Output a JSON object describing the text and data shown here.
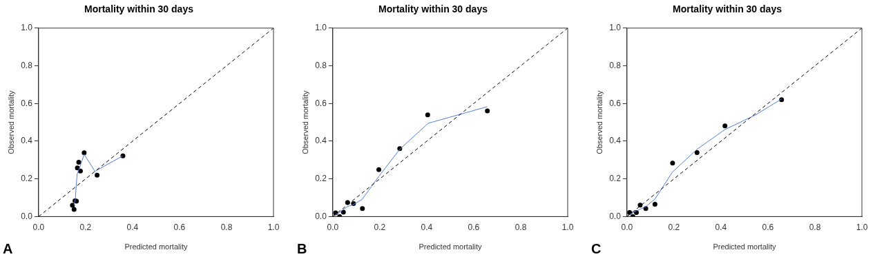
{
  "chart_data": [
    {
      "type": "scatter",
      "title": "Mortality within 30 days",
      "xlabel": "Predicted mortality",
      "ylabel": "Observed mortality",
      "annotations": [
        "A"
      ],
      "grid": false,
      "legend": false,
      "xlim": [
        0,
        1
      ],
      "ylim": [
        0,
        1
      ],
      "xticks": [
        {
          "value": 0,
          "label": "0.0"
        },
        {
          "value": 0.2,
          "label": "0.2"
        },
        {
          "value": 0.4,
          "label": "0.4"
        },
        {
          "value": 0.6,
          "label": "0.6"
        },
        {
          "value": 0.8,
          "label": "0.8"
        },
        {
          "value": 1,
          "label": "1.0"
        }
      ],
      "yticks": [
        {
          "value": 0,
          "label": "0.0"
        },
        {
          "value": 0.2,
          "label": "0.2"
        },
        {
          "value": 0.4,
          "label": "0.4"
        },
        {
          "value": 0.6,
          "label": "0.6"
        },
        {
          "value": 0.8,
          "label": "0.8"
        },
        {
          "value": 1,
          "label": "1.0"
        }
      ],
      "series": [
        {
          "type": "line",
          "color": "#000000",
          "line_style": "dashed",
          "marker": "none",
          "x": [
            0,
            1
          ],
          "values": [
            0,
            1
          ]
        },
        {
          "type": "line",
          "color": "#4f7fd9",
          "line_style": "solid",
          "marker": "none",
          "x": [
            0.15,
            0.156,
            0.164,
            0.172,
            0.194,
            0.24,
            0.358
          ],
          "values": [
            0.06,
            0.088,
            0.225,
            0.25,
            0.33,
            0.24,
            0.322
          ]
        },
        {
          "type": "scatter",
          "color": "#000000",
          "marker": "circle",
          "x": [
            0.144,
            0.151,
            0.155,
            0.161,
            0.165,
            0.171,
            0.178,
            0.194,
            0.249,
            0.359
          ],
          "values": [
            0.06,
            0.038,
            0.084,
            0.082,
            0.258,
            0.288,
            0.242,
            0.339,
            0.22,
            0.322
          ]
        }
      ]
    },
    {
      "type": "scatter",
      "title": "Mortality within 30 days",
      "xlabel": "Predicted mortality",
      "ylabel": "Observed mortality",
      "annotations": [
        "B"
      ],
      "grid": false,
      "legend": false,
      "xlim": [
        0,
        1
      ],
      "ylim": [
        0,
        1
      ],
      "xticks": [
        {
          "value": 0,
          "label": "0.0"
        },
        {
          "value": 0.2,
          "label": "0.2"
        },
        {
          "value": 0.4,
          "label": "0.4"
        },
        {
          "value": 0.6,
          "label": "0.6"
        },
        {
          "value": 0.8,
          "label": "0.8"
        },
        {
          "value": 1,
          "label": "1.0"
        }
      ],
      "yticks": [
        {
          "value": 0,
          "label": "0.0"
        },
        {
          "value": 0.2,
          "label": "0.2"
        },
        {
          "value": 0.4,
          "label": "0.4"
        },
        {
          "value": 0.6,
          "label": "0.6"
        },
        {
          "value": 0.8,
          "label": "0.8"
        },
        {
          "value": 1,
          "label": "1.0"
        }
      ],
      "series": [
        {
          "type": "line",
          "color": "#000000",
          "line_style": "dashed",
          "marker": "none",
          "x": [
            0,
            1
          ],
          "values": [
            0,
            1
          ]
        },
        {
          "type": "line",
          "color": "#4f7fd9",
          "line_style": "solid",
          "marker": "none",
          "x": [
            0,
            0.027,
            0.062,
            0.086,
            0.124,
            0.196,
            0.285,
            0.406,
            0.658
          ],
          "values": [
            0.002,
            0.02,
            0.053,
            0.063,
            0.09,
            0.213,
            0.357,
            0.495,
            0.583
          ]
        },
        {
          "type": "scatter",
          "color": "#000000",
          "marker": "circle",
          "x": [
            0.012,
            0.029,
            0.045,
            0.063,
            0.088,
            0.126,
            0.196,
            0.285,
            0.404,
            0.658
          ],
          "values": [
            0.02,
            0.0,
            0.023,
            0.075,
            0.069,
            0.043,
            0.249,
            0.361,
            0.54,
            0.561
          ]
        }
      ]
    },
    {
      "type": "scatter",
      "title": "Mortality within 30 days",
      "xlabel": "Predicted mortality",
      "ylabel": "Observed mortality",
      "annotations": [
        "C"
      ],
      "grid": false,
      "legend": false,
      "xlim": [
        0,
        1
      ],
      "ylim": [
        0,
        1
      ],
      "xticks": [
        {
          "value": 0,
          "label": "0.0"
        },
        {
          "value": 0.2,
          "label": "0.2"
        },
        {
          "value": 0.4,
          "label": "0.4"
        },
        {
          "value": 0.6,
          "label": "0.6"
        },
        {
          "value": 0.8,
          "label": "0.8"
        },
        {
          "value": 1,
          "label": "1.0"
        }
      ],
      "yticks": [
        {
          "value": 0,
          "label": "0.0"
        },
        {
          "value": 0.2,
          "label": "0.2"
        },
        {
          "value": 0.4,
          "label": "0.4"
        },
        {
          "value": 0.6,
          "label": "0.6"
        },
        {
          "value": 0.8,
          "label": "0.8"
        },
        {
          "value": 1,
          "label": "1.0"
        }
      ],
      "series": [
        {
          "type": "line",
          "color": "#000000",
          "line_style": "dashed",
          "marker": "none",
          "x": [
            0,
            1
          ],
          "values": [
            0,
            1
          ]
        },
        {
          "type": "line",
          "color": "#4f7fd9",
          "line_style": "solid",
          "marker": "none",
          "x": [
            0,
            0.04,
            0.08,
            0.119,
            0.194,
            0.298,
            0.417,
            0.544,
            0.658
          ],
          "values": [
            0.002,
            0.03,
            0.053,
            0.093,
            0.237,
            0.357,
            0.462,
            0.537,
            0.624
          ]
        },
        {
          "type": "scatter",
          "color": "#000000",
          "marker": "circle",
          "x": [
            0.011,
            0.025,
            0.04,
            0.056,
            0.08,
            0.119,
            0.194,
            0.298,
            0.417,
            0.658
          ],
          "values": [
            0.022,
            0.0,
            0.022,
            0.061,
            0.043,
            0.065,
            0.284,
            0.34,
            0.481,
            0.62
          ]
        }
      ]
    }
  ]
}
